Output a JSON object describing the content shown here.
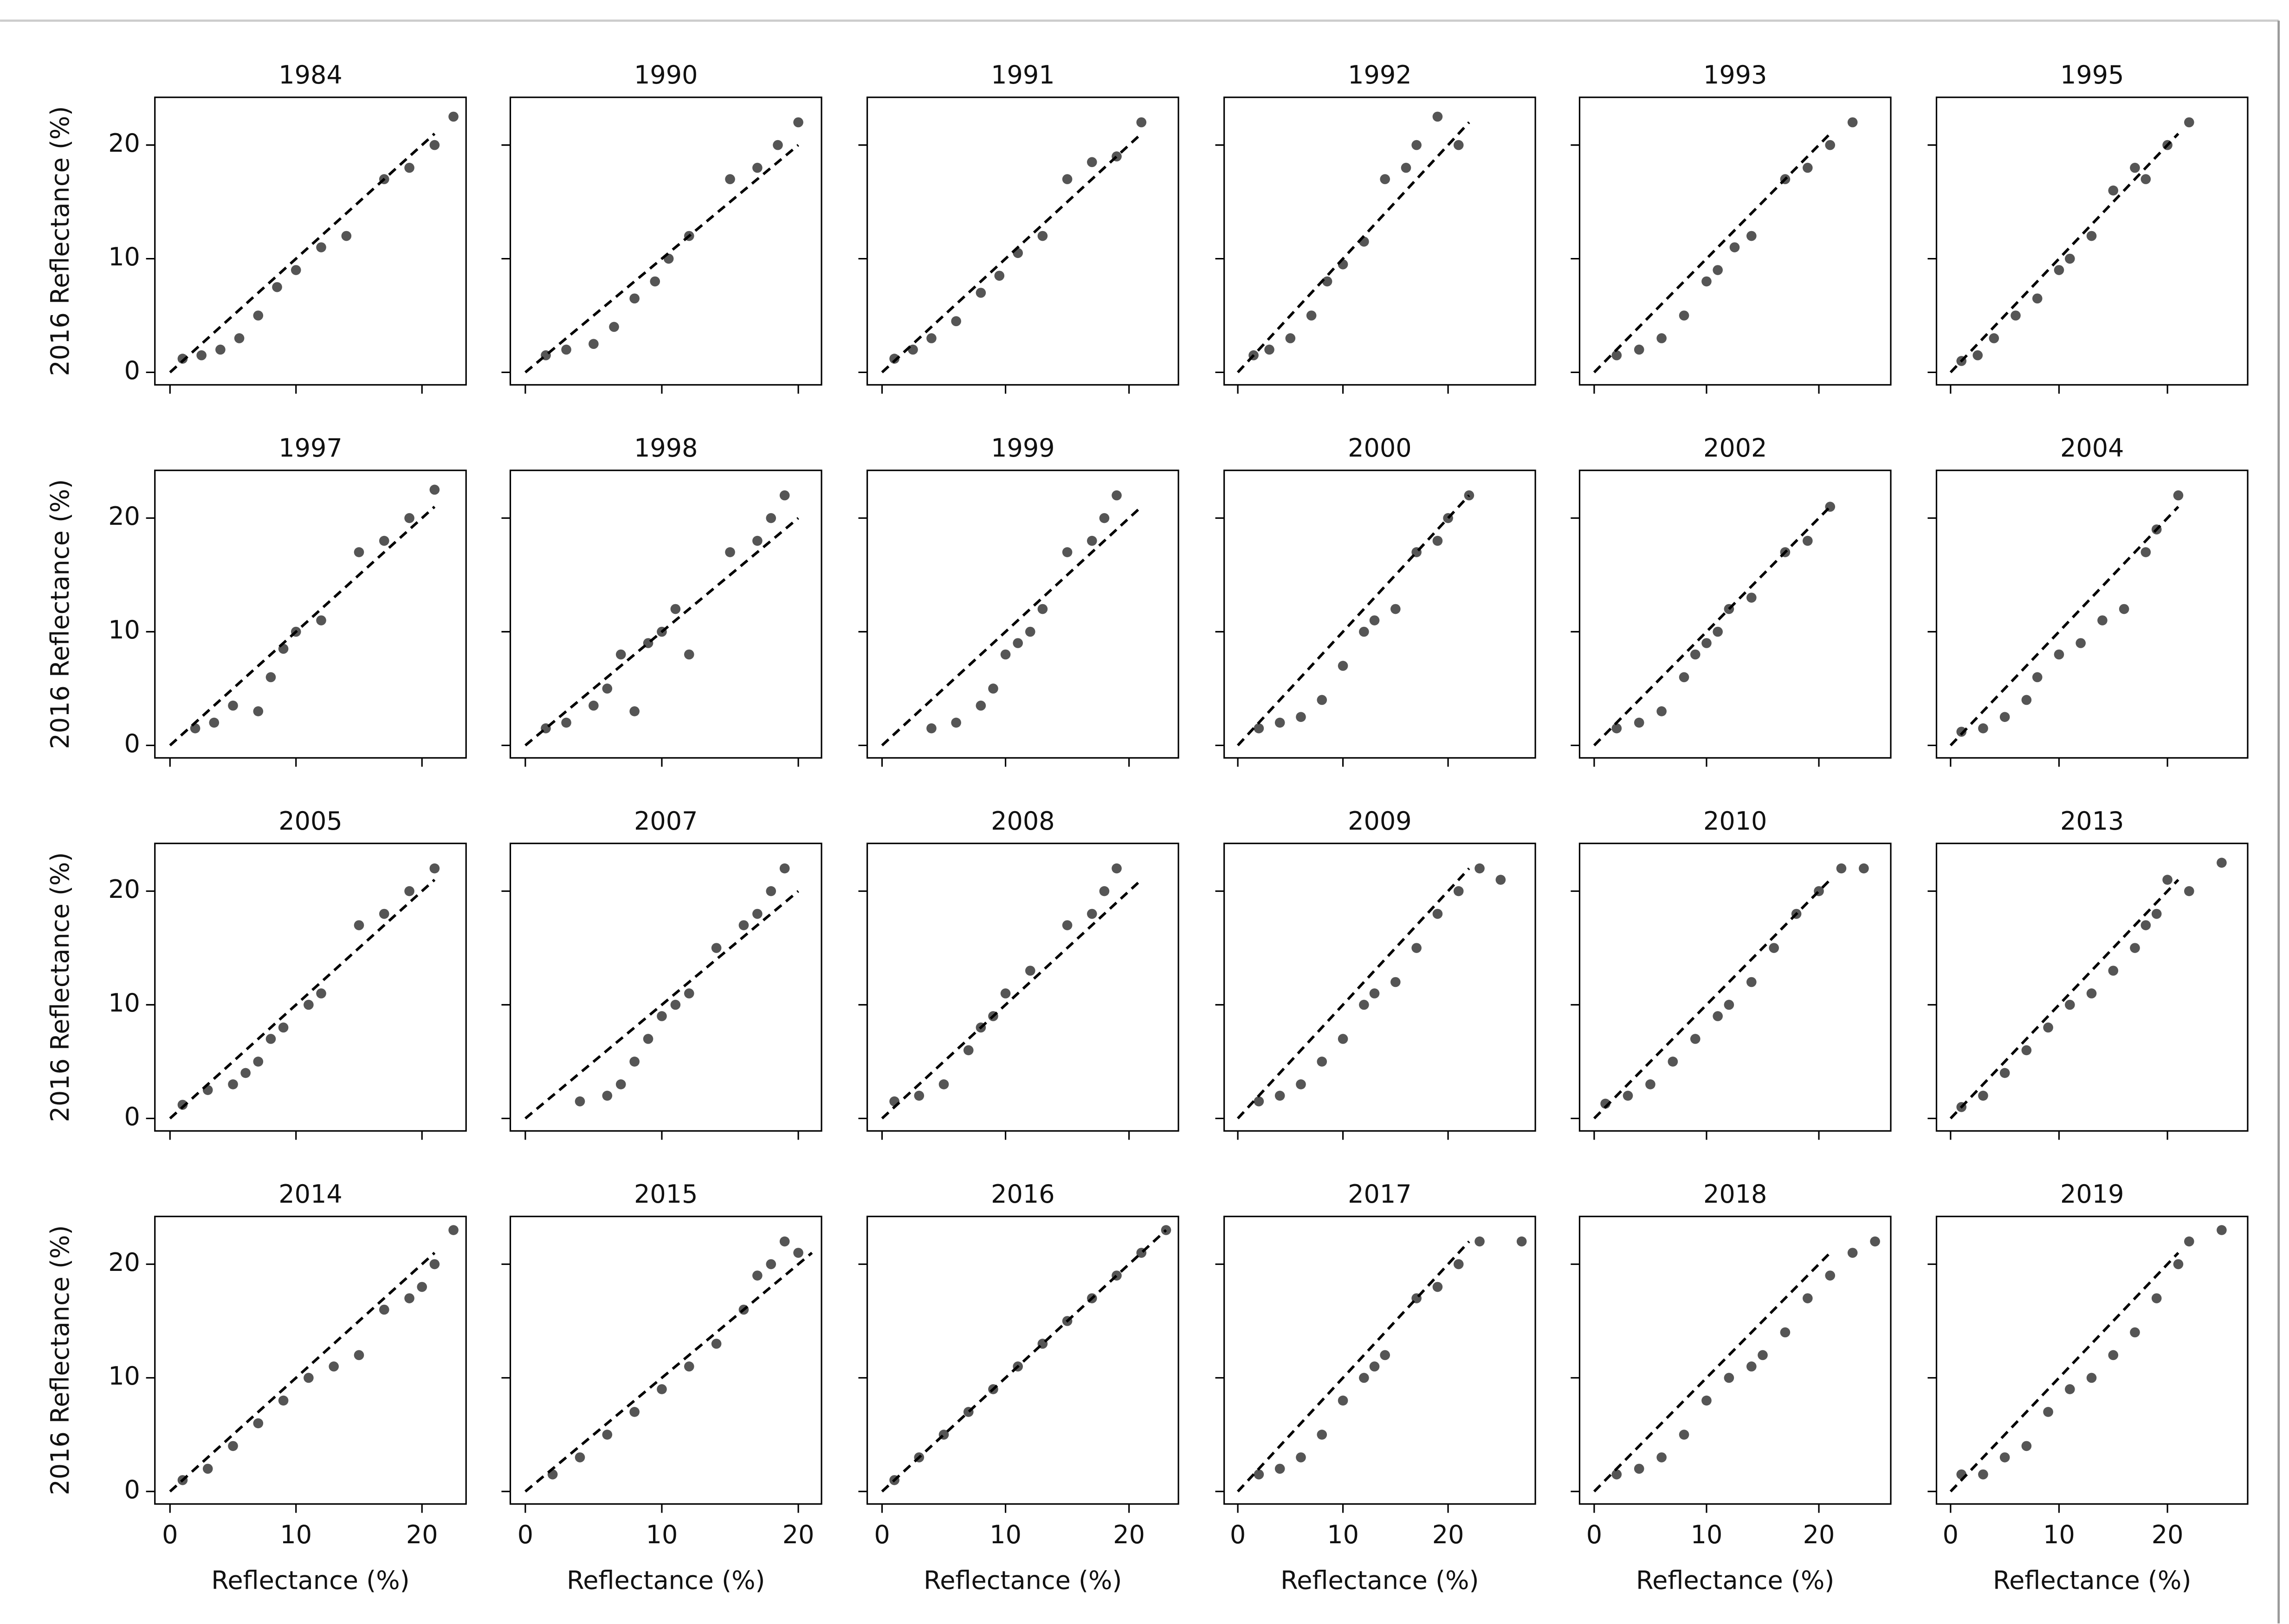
{
  "chart_data": [
    {
      "type": "scatter",
      "title": "1984",
      "ylabel": "2016 Reflectance (%)",
      "x": [
        1,
        2.5,
        4,
        5.5,
        7,
        8.5,
        10,
        12,
        14,
        17,
        19,
        21,
        22.5
      ],
      "y": [
        1.2,
        1.5,
        2,
        3,
        5,
        7.5,
        9,
        11,
        12,
        17,
        18,
        20,
        22.5
      ],
      "xlim": [
        -1.2,
        23.5
      ],
      "ylim": [
        -1.1,
        24.2
      ],
      "xticks": [
        0,
        10,
        20
      ],
      "yticks": [
        0,
        10,
        20
      ],
      "color": "#555555",
      "one_to_one_line": {
        "x": [
          0,
          21
        ],
        "y": [
          0,
          21
        ]
      }
    },
    {
      "type": "scatter",
      "title": "1990",
      "x": [
        1.5,
        3,
        5,
        6.5,
        8,
        9.5,
        10.5,
        12,
        15,
        17,
        18.5,
        20
      ],
      "y": [
        1.5,
        2,
        2.5,
        4,
        6.5,
        8,
        10,
        12,
        17,
        18,
        20,
        22
      ],
      "xlim": [
        -1.1,
        21.7
      ],
      "ylim": [
        -1.1,
        24.2
      ],
      "xticks": [
        0,
        10,
        20
      ],
      "yticks": [
        0,
        10,
        20
      ],
      "color": "#555555",
      "one_to_one_line": {
        "x": [
          0,
          20
        ],
        "y": [
          0,
          20
        ]
      }
    },
    {
      "type": "scatter",
      "title": "1991",
      "x": [
        1,
        2.5,
        4,
        6,
        8,
        9.5,
        11,
        13,
        15,
        17,
        19,
        21
      ],
      "y": [
        1.2,
        2,
        3,
        4.5,
        7,
        8.5,
        10.5,
        12,
        17,
        18.5,
        19,
        22
      ],
      "xlim": [
        -1.2,
        24
      ],
      "ylim": [
        -1.1,
        24.2
      ],
      "xticks": [
        0,
        10,
        20
      ],
      "yticks": [
        0,
        10,
        20
      ],
      "color": "#555555",
      "one_to_one_line": {
        "x": [
          0,
          21
        ],
        "y": [
          0,
          21
        ]
      }
    },
    {
      "type": "scatter",
      "title": "1992",
      "x": [
        1.5,
        3,
        5,
        7,
        8.5,
        10,
        12,
        14,
        16,
        17,
        19,
        21
      ],
      "y": [
        1.5,
        2,
        3,
        5,
        8,
        9.5,
        11.5,
        17,
        18,
        20,
        22.5,
        20
      ],
      "xlim": [
        -1.3,
        28.3
      ],
      "ylim": [
        -1.1,
        24.2
      ],
      "xticks": [
        0,
        10,
        20
      ],
      "yticks": [
        0,
        10,
        20
      ],
      "color": "#555555",
      "one_to_one_line": {
        "x": [
          0,
          22
        ],
        "y": [
          0,
          22
        ]
      }
    },
    {
      "type": "scatter",
      "title": "1993",
      "x": [
        2,
        4,
        6,
        8,
        10,
        11,
        12.5,
        14,
        17,
        19,
        21,
        23
      ],
      "y": [
        1.5,
        2,
        3,
        5,
        8,
        9,
        11,
        12,
        17,
        18,
        20,
        22
      ],
      "xlim": [
        -1.3,
        26.4
      ],
      "ylim": [
        -1.1,
        24.2
      ],
      "xticks": [
        0,
        10,
        20
      ],
      "yticks": [
        0,
        10,
        20
      ],
      "color": "#555555",
      "one_to_one_line": {
        "x": [
          0,
          21
        ],
        "y": [
          0,
          21
        ]
      }
    },
    {
      "type": "scatter",
      "title": "1995",
      "x": [
        1,
        2.5,
        4,
        6,
        8,
        10,
        11,
        13,
        15,
        17,
        18,
        20,
        22
      ],
      "y": [
        1,
        1.5,
        3,
        5,
        6.5,
        9,
        10,
        12,
        16,
        18,
        17,
        20,
        22
      ],
      "xlim": [
        -1.3,
        27.4
      ],
      "ylim": [
        -1.1,
        24.2
      ],
      "xticks": [
        0,
        10,
        20
      ],
      "yticks": [
        0,
        10,
        20
      ],
      "color": "#555555",
      "one_to_one_line": {
        "x": [
          0,
          21
        ],
        "y": [
          0,
          21
        ]
      }
    },
    {
      "type": "scatter",
      "title": "1997",
      "ylabel": "2016 Reflectance (%)",
      "x": [
        2,
        3.5,
        5,
        7,
        8,
        9,
        10,
        12,
        15,
        17,
        19,
        21
      ],
      "y": [
        1.5,
        2,
        3.5,
        3,
        6,
        8.5,
        10,
        11,
        17,
        18,
        20,
        22.5
      ],
      "xlim": [
        -1.2,
        23.5
      ],
      "ylim": [
        -1.1,
        24.2
      ],
      "xticks": [
        0,
        10,
        20
      ],
      "yticks": [
        0,
        10,
        20
      ],
      "color": "#555555",
      "one_to_one_line": {
        "x": [
          0,
          21
        ],
        "y": [
          0,
          21
        ]
      }
    },
    {
      "type": "scatter",
      "title": "1998",
      "x": [
        1.5,
        3,
        5,
        6,
        7,
        8,
        9,
        10,
        11,
        12,
        15,
        17,
        18,
        19
      ],
      "y": [
        1.5,
        2,
        3.5,
        5,
        8,
        3,
        9,
        10,
        12,
        8,
        17,
        18,
        20,
        22
      ],
      "xlim": [
        -1.1,
        21.7
      ],
      "ylim": [
        -1.1,
        24.2
      ],
      "xticks": [
        0,
        10,
        20
      ],
      "yticks": [
        0,
        10,
        20
      ],
      "color": "#555555",
      "one_to_one_line": {
        "x": [
          0,
          20
        ],
        "y": [
          0,
          20
        ]
      }
    },
    {
      "type": "scatter",
      "title": "1999",
      "x": [
        4,
        6,
        8,
        9,
        10,
        11,
        12,
        13,
        15,
        17,
        18,
        19
      ],
      "y": [
        1.5,
        2,
        3.5,
        5,
        8,
        9,
        10,
        12,
        17,
        18,
        20,
        22
      ],
      "xlim": [
        -1.2,
        24
      ],
      "ylim": [
        -1.1,
        24.2
      ],
      "xticks": [
        0,
        10,
        20
      ],
      "yticks": [
        0,
        10,
        20
      ],
      "color": "#555555",
      "one_to_one_line": {
        "x": [
          0,
          21
        ],
        "y": [
          0,
          21
        ]
      }
    },
    {
      "type": "scatter",
      "title": "2000",
      "x": [
        2,
        4,
        6,
        8,
        10,
        12,
        13,
        15,
        17,
        19,
        20,
        22
      ],
      "y": [
        1.5,
        2,
        2.5,
        4,
        7,
        10,
        11,
        12,
        17,
        18,
        20,
        22
      ],
      "xlim": [
        -1.3,
        28.3
      ],
      "ylim": [
        -1.1,
        24.2
      ],
      "xticks": [
        0,
        10,
        20
      ],
      "yticks": [
        0,
        10,
        20
      ],
      "color": "#555555",
      "one_to_one_line": {
        "x": [
          0,
          22
        ],
        "y": [
          0,
          22
        ]
      }
    },
    {
      "type": "scatter",
      "title": "2002",
      "x": [
        2,
        4,
        6,
        8,
        9,
        10,
        11,
        12,
        14,
        17,
        19,
        21
      ],
      "y": [
        1.5,
        2,
        3,
        6,
        8,
        9,
        10,
        12,
        13,
        17,
        18,
        21
      ],
      "xlim": [
        -1.3,
        26.4
      ],
      "ylim": [
        -1.1,
        24.2
      ],
      "xticks": [
        0,
        10,
        20
      ],
      "yticks": [
        0,
        10,
        20
      ],
      "color": "#555555",
      "one_to_one_line": {
        "x": [
          0,
          21
        ],
        "y": [
          0,
          21
        ]
      }
    },
    {
      "type": "scatter",
      "title": "2004",
      "x": [
        1,
        3,
        5,
        7,
        8,
        10,
        12,
        14,
        16,
        18,
        19,
        21
      ],
      "y": [
        1.2,
        1.5,
        2.5,
        4,
        6,
        8,
        9,
        11,
        12,
        17,
        19,
        22
      ],
      "xlim": [
        -1.3,
        27.4
      ],
      "ylim": [
        -1.1,
        24.2
      ],
      "xticks": [
        0,
        10,
        20
      ],
      "yticks": [
        0,
        10,
        20
      ],
      "color": "#555555",
      "one_to_one_line": {
        "x": [
          0,
          21
        ],
        "y": [
          0,
          21
        ]
      }
    },
    {
      "type": "scatter",
      "title": "2005",
      "ylabel": "2016 Reflectance (%)",
      "x": [
        1,
        3,
        5,
        6,
        7,
        8,
        9,
        11,
        12,
        15,
        17,
        19,
        21
      ],
      "y": [
        1.2,
        2.5,
        3,
        4,
        5,
        7,
        8,
        10,
        11,
        17,
        18,
        20,
        22
      ],
      "xlim": [
        -1.2,
        23.5
      ],
      "ylim": [
        -1.1,
        24.2
      ],
      "xticks": [
        0,
        10,
        20
      ],
      "yticks": [
        0,
        10,
        20
      ],
      "color": "#555555",
      "one_to_one_line": {
        "x": [
          0,
          21
        ],
        "y": [
          0,
          21
        ]
      }
    },
    {
      "type": "scatter",
      "title": "2007",
      "x": [
        4,
        6,
        7,
        8,
        9,
        10,
        11,
        12,
        14,
        16,
        17,
        18,
        19
      ],
      "y": [
        1.5,
        2,
        3,
        5,
        7,
        9,
        10,
        11,
        15,
        17,
        18,
        20,
        22
      ],
      "xlim": [
        -1.1,
        21.7
      ],
      "ylim": [
        -1.1,
        24.2
      ],
      "xticks": [
        0,
        10,
        20
      ],
      "yticks": [
        0,
        10,
        20
      ],
      "color": "#555555",
      "one_to_one_line": {
        "x": [
          0,
          20
        ],
        "y": [
          0,
          20
        ]
      }
    },
    {
      "type": "scatter",
      "title": "2008",
      "x": [
        1,
        3,
        5,
        7,
        8,
        9,
        10,
        12,
        15,
        17,
        18,
        19
      ],
      "y": [
        1.5,
        2,
        3,
        6,
        8,
        9,
        11,
        13,
        17,
        18,
        20,
        22
      ],
      "xlim": [
        -1.2,
        24
      ],
      "ylim": [
        -1.1,
        24.2
      ],
      "xticks": [
        0,
        10,
        20
      ],
      "yticks": [
        0,
        10,
        20
      ],
      "color": "#555555",
      "one_to_one_line": {
        "x": [
          0,
          21
        ],
        "y": [
          0,
          21
        ]
      }
    },
    {
      "type": "scatter",
      "title": "2009",
      "x": [
        2,
        4,
        6,
        8,
        10,
        12,
        13,
        15,
        17,
        19,
        21,
        23,
        25
      ],
      "y": [
        1.5,
        2,
        3,
        5,
        7,
        10,
        11,
        12,
        15,
        18,
        20,
        22,
        21
      ],
      "xlim": [
        -1.3,
        28.3
      ],
      "ylim": [
        -1.1,
        24.2
      ],
      "xticks": [
        0,
        10,
        20
      ],
      "yticks": [
        0,
        10,
        20
      ],
      "color": "#555555",
      "one_to_one_line": {
        "x": [
          0,
          22
        ],
        "y": [
          0,
          22
        ]
      }
    },
    {
      "type": "scatter",
      "title": "2010",
      "x": [
        1,
        3,
        5,
        7,
        9,
        11,
        12,
        14,
        16,
        18,
        20,
        22,
        24
      ],
      "y": [
        1.3,
        2,
        3,
        5,
        7,
        9,
        10,
        12,
        15,
        18,
        20,
        22,
        22
      ],
      "xlim": [
        -1.3,
        26.4
      ],
      "ylim": [
        -1.1,
        24.2
      ],
      "xticks": [
        0,
        10,
        20
      ],
      "yticks": [
        0,
        10,
        20
      ],
      "color": "#555555",
      "one_to_one_line": {
        "x": [
          0,
          21
        ],
        "y": [
          0,
          21
        ]
      }
    },
    {
      "type": "scatter",
      "title": "2013",
      "x": [
        1,
        3,
        5,
        7,
        9,
        11,
        13,
        15,
        17,
        18,
        19,
        20,
        22,
        25
      ],
      "y": [
        1,
        2,
        4,
        6,
        8,
        10,
        11,
        13,
        15,
        17,
        18,
        21,
        20,
        22.5
      ],
      "xlim": [
        -1.3,
        27.4
      ],
      "ylim": [
        -1.1,
        24.2
      ],
      "xticks": [
        0,
        10,
        20
      ],
      "yticks": [
        0,
        10,
        20
      ],
      "color": "#555555",
      "one_to_one_line": {
        "x": [
          0,
          21
        ],
        "y": [
          0,
          21
        ]
      }
    },
    {
      "type": "scatter",
      "title": "2014",
      "ylabel": "2016 Reflectance (%)",
      "xlabel": "Reflectance (%)",
      "x": [
        1,
        3,
        5,
        7,
        9,
        11,
        13,
        15,
        17,
        19,
        20,
        21,
        22.5
      ],
      "y": [
        1,
        2,
        4,
        6,
        8,
        10,
        11,
        12,
        16,
        17,
        18,
        20,
        23
      ],
      "xlim": [
        -1.2,
        23.5
      ],
      "ylim": [
        -1.1,
        24.2
      ],
      "xticks": [
        0,
        10,
        20
      ],
      "yticks": [
        0,
        10,
        20
      ],
      "color": "#555555",
      "one_to_one_line": {
        "x": [
          0,
          21
        ],
        "y": [
          0,
          21
        ]
      }
    },
    {
      "type": "scatter",
      "title": "2015",
      "xlabel": "Reflectance (%)",
      "x": [
        2,
        4,
        6,
        8,
        10,
        12,
        14,
        16,
        17,
        18,
        19,
        20
      ],
      "y": [
        1.5,
        3,
        5,
        7,
        9,
        11,
        13,
        16,
        19,
        20,
        22,
        21
      ],
      "xlim": [
        -1.1,
        21.7
      ],
      "ylim": [
        -1.1,
        24.2
      ],
      "xticks": [
        0,
        10,
        20
      ],
      "yticks": [
        0,
        10,
        20
      ],
      "color": "#555555",
      "one_to_one_line": {
        "x": [
          0,
          21
        ],
        "y": [
          0,
          21
        ]
      }
    },
    {
      "type": "scatter",
      "title": "2016",
      "xlabel": "Reflectance (%)",
      "x": [
        1,
        3,
        5,
        7,
        9,
        11,
        13,
        15,
        17,
        19,
        21,
        23
      ],
      "y": [
        1,
        3,
        5,
        7,
        9,
        11,
        13,
        15,
        17,
        19,
        21,
        23
      ],
      "xlim": [
        -1.2,
        24
      ],
      "ylim": [
        -1.1,
        24.2
      ],
      "xticks": [
        0,
        10,
        20
      ],
      "yticks": [
        0,
        10,
        20
      ],
      "color": "#555555",
      "one_to_one_line": {
        "x": [
          0,
          23
        ],
        "y": [
          0,
          23
        ]
      }
    },
    {
      "type": "scatter",
      "title": "2017",
      "xlabel": "Reflectance (%)",
      "x": [
        2,
        4,
        6,
        8,
        10,
        12,
        13,
        14,
        17,
        19,
        21,
        23,
        27
      ],
      "y": [
        1.5,
        2,
        3,
        5,
        8,
        10,
        11,
        12,
        17,
        18,
        20,
        22,
        22
      ],
      "xlim": [
        -1.3,
        28.3
      ],
      "ylim": [
        -1.1,
        24.2
      ],
      "xticks": [
        0,
        10,
        20
      ],
      "yticks": [
        0,
        10,
        20
      ],
      "color": "#555555",
      "one_to_one_line": {
        "x": [
          0,
          22
        ],
        "y": [
          0,
          22
        ]
      }
    },
    {
      "type": "scatter",
      "title": "2018",
      "xlabel": "Reflectance (%)",
      "x": [
        2,
        4,
        6,
        8,
        10,
        12,
        14,
        15,
        17,
        19,
        21,
        23,
        25
      ],
      "y": [
        1.5,
        2,
        3,
        5,
        8,
        10,
        11,
        12,
        14,
        17,
        19,
        21,
        22
      ],
      "xlim": [
        -1.3,
        26.4
      ],
      "ylim": [
        -1.1,
        24.2
      ],
      "xticks": [
        0,
        10,
        20
      ],
      "yticks": [
        0,
        10,
        20
      ],
      "color": "#555555",
      "one_to_one_line": {
        "x": [
          0,
          21
        ],
        "y": [
          0,
          21
        ]
      }
    },
    {
      "type": "scatter",
      "title": "2019",
      "xlabel": "Reflectance (%)",
      "x": [
        1,
        3,
        5,
        7,
        9,
        11,
        13,
        15,
        17,
        19,
        21,
        22,
        25
      ],
      "y": [
        1.5,
        1.5,
        3,
        4,
        7,
        9,
        10,
        12,
        14,
        17,
        20,
        22,
        23
      ],
      "xlim": [
        -1.3,
        27.4
      ],
      "ylim": [
        -1.1,
        24.2
      ],
      "xticks": [
        0,
        10,
        20
      ],
      "yticks": [
        0,
        10,
        20
      ],
      "color": "#555555",
      "one_to_one_line": {
        "x": [
          0,
          21
        ],
        "y": [
          0,
          21
        ]
      }
    }
  ]
}
